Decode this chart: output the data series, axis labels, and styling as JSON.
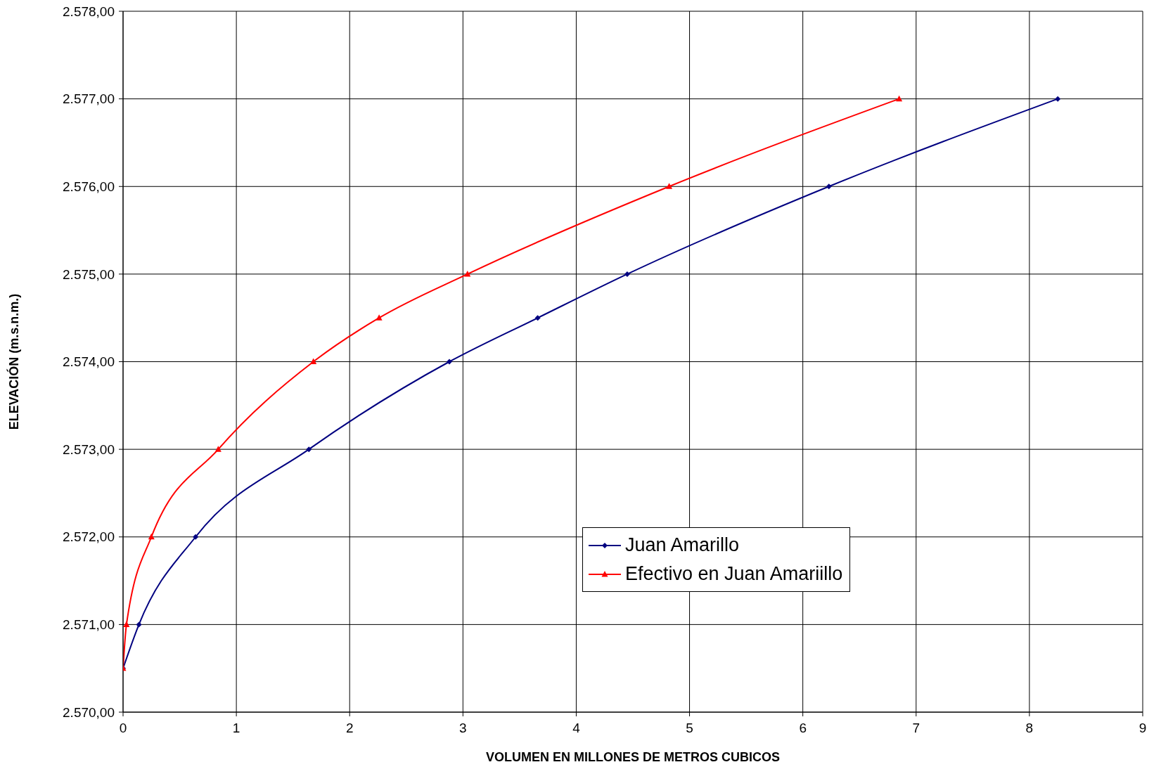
{
  "chart_data": {
    "type": "line",
    "xlabel": "VOLUMEN EN MILLONES DE METROS CUBICOS",
    "ylabel": "ELEVACIÓN (m.s.n.m.)",
    "xlim": [
      0,
      9
    ],
    "xticks": [
      0,
      1,
      2,
      3,
      4,
      5,
      6,
      7,
      8,
      9
    ],
    "ylim": [
      2570,
      2578
    ],
    "yticks": [
      {
        "value": 2570,
        "label": "2.570,00"
      },
      {
        "value": 2571,
        "label": "2.571,00"
      },
      {
        "value": 2572,
        "label": "2.572,00"
      },
      {
        "value": 2573,
        "label": "2.573,00"
      },
      {
        "value": 2574,
        "label": "2.574,00"
      },
      {
        "value": 2575,
        "label": "2.575,00"
      },
      {
        "value": 2576,
        "label": "2.576,00"
      },
      {
        "value": 2577,
        "label": "2.577,00"
      },
      {
        "value": 2578,
        "label": "2.578,00"
      }
    ],
    "grid": true,
    "legend": "right",
    "line_style": "solid",
    "series": [
      {
        "name": "Juan Amarillo",
        "color": "#000080",
        "marker": "diamond",
        "x": [
          0,
          0.14,
          0.64,
          1.64,
          2.88,
          3.66,
          4.45,
          6.23,
          8.25
        ],
        "values": [
          2570.5,
          2571,
          2572,
          2573,
          2574,
          2574.5,
          2575,
          2576,
          2577
        ]
      },
      {
        "name": "Efectivo en Juan Amariillo",
        "color": "#ff0000",
        "marker": "triangle",
        "x": [
          0,
          0.03,
          0.25,
          0.84,
          1.68,
          2.26,
          3.04,
          4.82,
          6.85
        ],
        "values": [
          2570.5,
          2571,
          2572,
          2573,
          2574,
          2574.5,
          2575,
          2576,
          2577
        ]
      }
    ]
  }
}
